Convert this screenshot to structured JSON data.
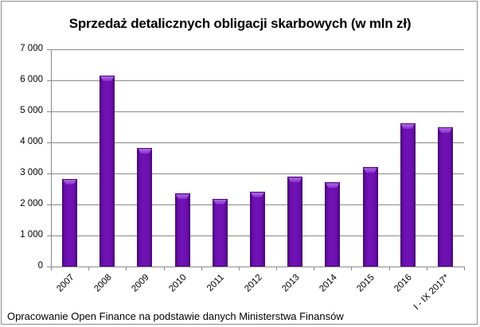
{
  "chart_data": {
    "type": "bar",
    "title": "Sprzedaż detalicznych obligacji skarbowych (w mln zł)",
    "categories": [
      "2007",
      "2008",
      "2009",
      "2010",
      "2011",
      "2012",
      "2013",
      "2014",
      "2015",
      "2016",
      "I - IX 2017*"
    ],
    "values": [
      2830,
      6160,
      3820,
      2350,
      2190,
      2420,
      2890,
      2710,
      3200,
      4620,
      4490
    ],
    "xlabel": "",
    "ylabel": "",
    "ylim": [
      0,
      7000
    ],
    "yticks": [
      0,
      1000,
      2000,
      3000,
      4000,
      5000,
      6000,
      7000
    ],
    "ytick_labels": [
      "0",
      "1 000",
      "2 000",
      "3 000",
      "4 000",
      "5 000",
      "6 000",
      "7 000"
    ],
    "grid": true,
    "legend": null,
    "bar_color": "#6a0dad",
    "annotation": "Opracowanie Open Finance na podstawie danych Ministerstwa Finansów"
  },
  "title": "Sprzedaż detalicznych obligacji skarbowych (w mln zł)",
  "source_note": "Opracowanie Open Finance na podstawie danych Ministerstwa Finansów"
}
